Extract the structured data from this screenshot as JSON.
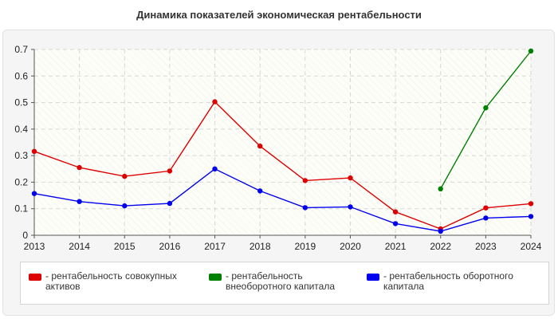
{
  "chart_data": {
    "type": "line",
    "title": "Динамика показателей экономическая рентабельности",
    "xlabel": "",
    "ylabel": "",
    "categories": [
      "2013",
      "2014",
      "2015",
      "2016",
      "2017",
      "2018",
      "2019",
      "2020",
      "2021",
      "2022",
      "2023",
      "2024"
    ],
    "ylim": [
      0,
      0.7
    ],
    "yticks": [
      "0",
      "0.1",
      "0.2",
      "0.3",
      "0.4",
      "0.5",
      "0.6",
      "0.7"
    ],
    "grid": true,
    "legend_position": "bottom",
    "series": [
      {
        "name": "рентабельность совокупных активов",
        "color": "#dd0000",
        "values": [
          0.316,
          0.255,
          0.222,
          0.242,
          0.503,
          0.336,
          0.206,
          0.216,
          0.088,
          0.024,
          0.103,
          0.119
        ]
      },
      {
        "name": "рентабельность внеоборотного капитала",
        "color": "#008000",
        "values": [
          null,
          null,
          null,
          null,
          null,
          null,
          null,
          null,
          null,
          0.175,
          0.48,
          0.694
        ]
      },
      {
        "name": "рентабельность оборотного капитала",
        "color": "#0000ee",
        "values": [
          0.157,
          0.127,
          0.111,
          0.12,
          0.25,
          0.167,
          0.104,
          0.107,
          0.044,
          0.015,
          0.065,
          0.071
        ]
      }
    ]
  }
}
